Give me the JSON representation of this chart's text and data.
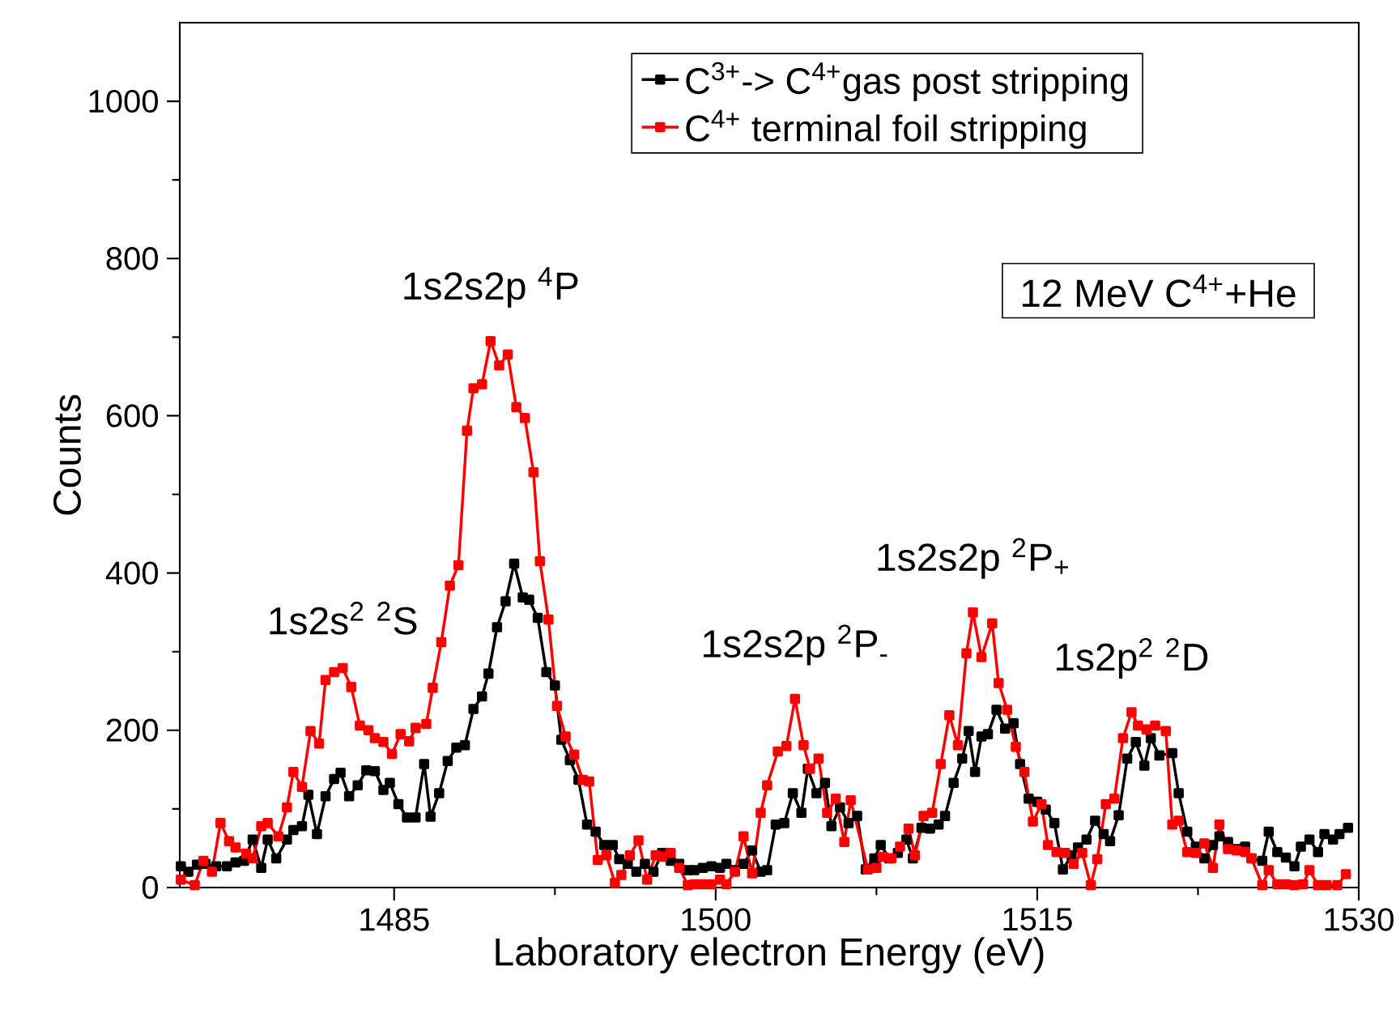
{
  "chart_data": {
    "type": "line",
    "xlabel": "Laboratory electron Energy (eV)",
    "ylabel": "Counts",
    "xlim": [
      1475,
      1530
    ],
    "ylim": [
      0,
      1100
    ],
    "xticks": [
      1485,
      1500,
      1515,
      1530
    ],
    "yticks": [
      0,
      200,
      400,
      600,
      800,
      1000
    ],
    "marker": "square",
    "line_style": "solid",
    "legend": "top",
    "series": [
      {
        "name": "C$^{3+}$-> C$^{4+}$gas post stripping",
        "color": "#000000",
        "x": [
          1475.05,
          1475.4,
          1475.8,
          1476.2,
          1476.7,
          1477.2,
          1477.6,
          1478.0,
          1478.4,
          1478.8,
          1479.1,
          1479.5,
          1480.0,
          1480.3,
          1480.7,
          1481.0,
          1481.4,
          1481.8,
          1482.2,
          1482.5,
          1482.9,
          1483.3,
          1483.7,
          1484.1,
          1484.5,
          1484.8,
          1485.2,
          1485.6,
          1486.0,
          1486.4,
          1486.7,
          1487.1,
          1487.5,
          1487.9,
          1488.3,
          1488.7,
          1489.1,
          1489.4,
          1489.8,
          1490.2,
          1490.6,
          1491.0,
          1491.3,
          1491.7,
          1492.1,
          1492.5,
          1492.8,
          1493.2,
          1493.6,
          1494.0,
          1494.4,
          1494.8,
          1495.2,
          1495.5,
          1495.9,
          1496.3,
          1496.7,
          1497.1,
          1497.5,
          1497.9,
          1498.3,
          1498.7,
          1499.0,
          1499.4,
          1499.8,
          1500.2,
          1500.5,
          1500.9,
          1501.3,
          1501.7,
          1502.1,
          1502.4,
          1502.8,
          1503.2,
          1503.6,
          1504.0,
          1504.3,
          1504.7,
          1505.1,
          1505.4,
          1505.8,
          1506.2,
          1506.6,
          1507.0,
          1507.4,
          1507.7,
          1508.1,
          1508.5,
          1508.9,
          1509.2,
          1509.6,
          1510.0,
          1510.4,
          1510.7,
          1511.1,
          1511.5,
          1511.8,
          1512.1,
          1512.4,
          1512.7,
          1513.1,
          1513.5,
          1513.9,
          1514.2,
          1514.6,
          1515.0,
          1515.4,
          1515.8,
          1516.2,
          1516.6,
          1516.9,
          1517.3,
          1517.7,
          1518.1,
          1518.4,
          1518.8,
          1519.2,
          1519.6,
          1520.0,
          1520.3,
          1520.7,
          1521.3,
          1521.6,
          1522.0,
          1522.4,
          1522.8,
          1523.2,
          1523.5,
          1523.9,
          1524.3,
          1524.7,
          1525.0,
          1525.5,
          1525.8,
          1526.2,
          1526.6,
          1527.0,
          1527.3,
          1527.7,
          1528.1,
          1528.4,
          1528.8,
          1529.1,
          1529.5
        ],
        "values": [
          27,
          20,
          29,
          30,
          27,
          27,
          32,
          34,
          61,
          25,
          61,
          37,
          61,
          73,
          78,
          118,
          68,
          116,
          138,
          146,
          116,
          130,
          149,
          148,
          124,
          133,
          106,
          89,
          89,
          157,
          90,
          120,
          161,
          178,
          181,
          227,
          243,
          272,
          331,
          364,
          412,
          369,
          366,
          343,
          274,
          257,
          188,
          162,
          137,
          80,
          71,
          54,
          54,
          36,
          30,
          20,
          30,
          20,
          44,
          34,
          30,
          22,
          22,
          25,
          27,
          25,
          30,
          22,
          30,
          47,
          20,
          22,
          80,
          82,
          120,
          95,
          151,
          120,
          133,
          78,
          102,
          82,
          91,
          23,
          37,
          54,
          37,
          44,
          61,
          37,
          76,
          75,
          80,
          91,
          133,
          164,
          199,
          147,
          192,
          195,
          226,
          202,
          209,
          157,
          113,
          109,
          99,
          82,
          23,
          41,
          51,
          61,
          85,
          68,
          59,
          92,
          164,
          185,
          155,
          190,
          168,
          171,
          120,
          71,
          52,
          37,
          54,
          65,
          58,
          49,
          52,
          37,
          34,
          71,
          45,
          38,
          27,
          52,
          61,
          45,
          68,
          61,
          68,
          76
        ]
      },
      {
        "name": "C$^{4+}$ terminal foil stripping",
        "color": "#ff0000",
        "x": [
          1475.05,
          1475.7,
          1476.1,
          1476.5,
          1476.9,
          1477.3,
          1477.6,
          1478.1,
          1478.4,
          1478.8,
          1479.1,
          1479.6,
          1480.0,
          1480.3,
          1480.7,
          1481.1,
          1481.5,
          1481.8,
          1482.2,
          1482.6,
          1483.0,
          1483.4,
          1483.8,
          1484.1,
          1484.5,
          1484.9,
          1485.3,
          1485.7,
          1486.0,
          1486.5,
          1486.8,
          1487.2,
          1487.6,
          1488.0,
          1488.4,
          1488.7,
          1489.1,
          1489.5,
          1489.9,
          1490.3,
          1490.7,
          1491.1,
          1491.5,
          1491.8,
          1492.2,
          1492.6,
          1493.0,
          1493.4,
          1493.8,
          1494.1,
          1494.5,
          1494.9,
          1495.3,
          1495.6,
          1496.0,
          1496.4,
          1496.8,
          1497.2,
          1497.5,
          1497.9,
          1498.3,
          1498.7,
          1499.0,
          1499.4,
          1499.8,
          1500.2,
          1500.5,
          1500.9,
          1501.3,
          1501.7,
          1502.1,
          1502.4,
          1502.9,
          1503.3,
          1503.7,
          1504.1,
          1504.4,
          1504.8,
          1505.2,
          1505.6,
          1506.0,
          1506.3,
          1507.1,
          1507.5,
          1507.8,
          1508.2,
          1508.6,
          1509.0,
          1509.3,
          1509.7,
          1510.1,
          1510.5,
          1510.9,
          1511.3,
          1511.7,
          1512.0,
          1512.4,
          1512.9,
          1513.2,
          1513.6,
          1514.0,
          1514.4,
          1514.8,
          1515.2,
          1515.5,
          1515.9,
          1516.3,
          1516.7,
          1517.1,
          1517.5,
          1517.8,
          1518.2,
          1518.6,
          1519.0,
          1519.4,
          1519.7,
          1520.1,
          1520.5,
          1521.0,
          1521.3,
          1521.6,
          1522.0,
          1522.4,
          1522.8,
          1523.2,
          1523.5,
          1523.9,
          1524.3,
          1524.7,
          1525.0,
          1525.5,
          1525.8,
          1526.2,
          1526.6,
          1527.0,
          1527.4,
          1527.7,
          1528.1,
          1528.5,
          1529.0,
          1529.4
        ],
        "values": [
          10,
          3,
          34,
          20,
          82,
          59,
          51,
          43,
          37,
          78,
          82,
          65,
          102,
          147,
          128,
          199,
          183,
          264,
          274,
          279,
          255,
          206,
          200,
          190,
          185,
          170,
          195,
          186,
          203,
          208,
          254,
          312,
          384,
          410,
          581,
          635,
          640,
          695,
          664,
          678,
          611,
          597,
          528,
          415,
          341,
          231,
          192,
          169,
          137,
          135,
          35,
          41,
          6,
          16,
          41,
          60,
          10,
          41,
          39,
          44,
          25,
          3,
          4,
          4,
          4,
          10,
          4,
          20,
          65,
          18,
          95,
          130,
          173,
          180,
          240,
          181,
          151,
          164,
          95,
          113,
          58,
          111,
          23,
          25,
          39,
          37,
          52,
          75,
          41,
          91,
          95,
          157,
          219,
          181,
          298,
          350,
          293,
          336,
          260,
          226,
          179,
          147,
          84,
          106,
          54,
          45,
          44,
          30,
          44,
          3,
          36,
          106,
          113,
          190,
          223,
          206,
          201,
          206,
          199,
          80,
          85,
          45,
          44,
          56,
          25,
          80,
          49,
          47,
          45,
          37,
          3,
          22,
          4,
          4,
          3,
          4,
          22,
          3,
          3,
          3,
          17
        ]
      }
    ],
    "annotations": [
      {
        "text": "1s2s$^{2}$ $^{2}$S",
        "x": 1482.6,
        "y": 279
      },
      {
        "text": "1s2s2p $^{4}$P",
        "x": 1489.5,
        "y": 695
      },
      {
        "text": "1s2s2p $^{2}$P$_{-}$",
        "x": 1503.7,
        "y": 240
      },
      {
        "text": "1s2s2p $^{2}$P$_{+}$",
        "x": 1512.0,
        "y": 350
      },
      {
        "text": "1s2p$^{2}$ $^{2}$D",
        "x": 1519.4,
        "y": 223
      },
      "12 MeV C$^{4+}$+He"
    ]
  }
}
